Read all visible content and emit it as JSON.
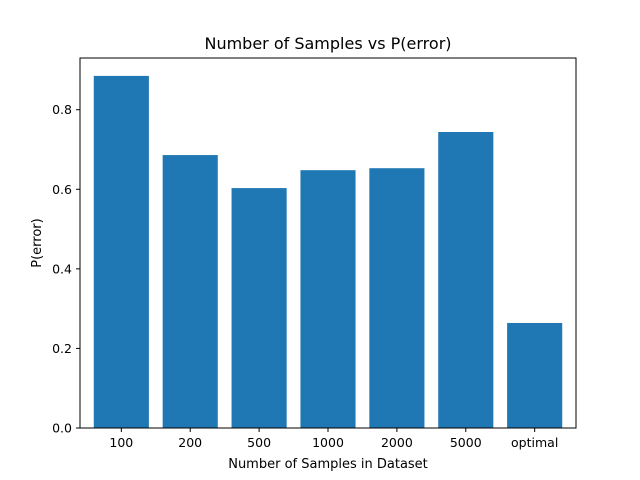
{
  "chart_data": {
    "type": "bar",
    "title": "Number of Samples vs P(error)",
    "xlabel": "Number of Samples in Dataset",
    "ylabel": "P(error)",
    "categories": [
      "100",
      "200",
      "500",
      "1000",
      "2000",
      "5000",
      "optimal"
    ],
    "values": [
      0.885,
      0.686,
      0.603,
      0.648,
      0.653,
      0.744,
      0.264
    ],
    "ylim": [
      0,
      0.93
    ],
    "yticks": [
      0.0,
      0.2,
      0.4,
      0.6,
      0.8
    ],
    "ytick_labels": [
      "0.0",
      "0.2",
      "0.4",
      "0.6",
      "0.8"
    ],
    "bar_color": "#1f77b4",
    "grid": false,
    "legend": "none"
  }
}
